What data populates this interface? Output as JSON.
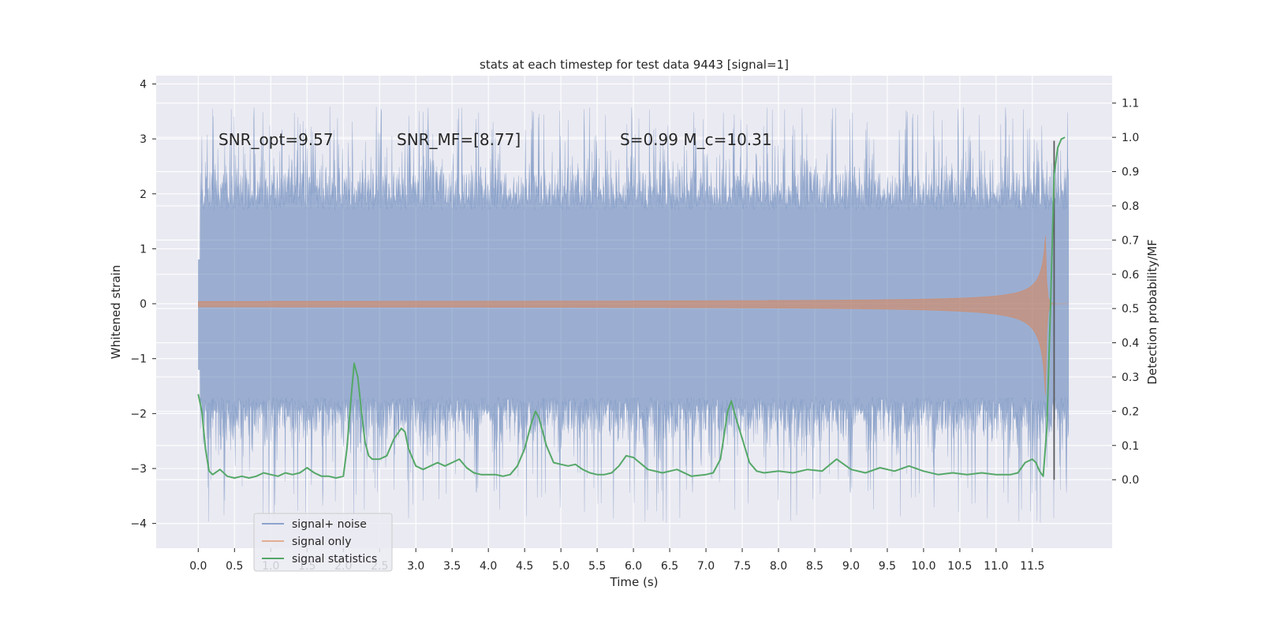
{
  "chart_data": {
    "type": "line",
    "title": "stats at each timestep for test data 9443 [signal=1]",
    "xlabel": "Time (s)",
    "ylabel_left": "Whitened strain",
    "ylabel_right": "Detection probability/MF",
    "xlim": [
      -0.58,
      12.6
    ],
    "ylim_left": [
      -4.45,
      4.15
    ],
    "ylim_right": [
      -0.2,
      1.18
    ],
    "x_ticks": [
      0.0,
      0.5,
      1.0,
      1.5,
      2.0,
      2.5,
      3.0,
      3.5,
      4.0,
      4.5,
      5.0,
      5.5,
      6.0,
      6.5,
      7.0,
      7.5,
      8.0,
      8.5,
      9.0,
      9.5,
      10.0,
      10.5,
      11.0,
      11.5
    ],
    "x_tick_labels": [
      "0.0",
      "0.5",
      "1.0",
      "1.5",
      "2.0",
      "2.5",
      "3.0",
      "3.5",
      "4.0",
      "4.5",
      "5.0",
      "5.5",
      "6.0",
      "6.5",
      "7.0",
      "7.5",
      "8.0",
      "8.5",
      "9.0",
      "9.5",
      "10.0",
      "10.5",
      "11.0",
      "11.5"
    ],
    "y_left_ticks": [
      -4,
      -3,
      -2,
      -1,
      0,
      1,
      2,
      3,
      4
    ],
    "y_left_tick_labels": [
      "−4",
      "−3",
      "−2",
      "−1",
      "0",
      "1",
      "2",
      "3",
      "4"
    ],
    "y_right_ticks": [
      0.0,
      0.1,
      0.2,
      0.3,
      0.4,
      0.5,
      0.6,
      0.7,
      0.8,
      0.9,
      1.0,
      1.1
    ],
    "y_right_tick_labels": [
      "0.0",
      "0.1",
      "0.2",
      "0.3",
      "0.4",
      "0.5",
      "0.6",
      "0.7",
      "0.8",
      "0.9",
      "1.0",
      "1.1"
    ],
    "grid": true,
    "legend_position": "lower-left",
    "colors": {
      "background": "#eaeaf2",
      "grid": "#ffffff",
      "noise": "#4c72b0",
      "signal": "#dd8452",
      "statistics": "#55a868",
      "marker_line": "#5a5a5a"
    },
    "annotations": [
      {
        "id": "snr-opt",
        "text": "SNR_opt=9.57"
      },
      {
        "id": "snr-mf",
        "text": "SNR_MF=[8.77]"
      },
      {
        "id": "s-mc",
        "text": "S=0.99   M_c=10.31"
      }
    ],
    "series": [
      {
        "name": "signal+ noise",
        "axis": "left",
        "t_range": [
          0.0,
          12.0
        ],
        "envelope_max": 3.6,
        "envelope_min": -4.1
      },
      {
        "name": "signal only",
        "axis": "left",
        "t_range": [
          0.0,
          12.0
        ],
        "merger_time": 11.68,
        "peak_amplitude": 1.3
      },
      {
        "name": "signal statistics",
        "axis": "right",
        "x": [
          0.0,
          0.05,
          0.1,
          0.15,
          0.2,
          0.3,
          0.4,
          0.5,
          0.6,
          0.7,
          0.8,
          0.9,
          1.0,
          1.1,
          1.2,
          1.3,
          1.4,
          1.5,
          1.6,
          1.7,
          1.8,
          1.9,
          2.0,
          2.05,
          2.1,
          2.15,
          2.2,
          2.25,
          2.3,
          2.35,
          2.4,
          2.5,
          2.6,
          2.7,
          2.8,
          2.85,
          2.9,
          3.0,
          3.1,
          3.2,
          3.3,
          3.4,
          3.5,
          3.6,
          3.7,
          3.8,
          3.9,
          4.0,
          4.1,
          4.2,
          4.3,
          4.4,
          4.5,
          4.6,
          4.65,
          4.7,
          4.8,
          4.9,
          5.0,
          5.1,
          5.2,
          5.3,
          5.4,
          5.5,
          5.6,
          5.7,
          5.8,
          5.9,
          6.0,
          6.2,
          6.4,
          6.6,
          6.8,
          7.0,
          7.1,
          7.2,
          7.3,
          7.35,
          7.4,
          7.5,
          7.6,
          7.7,
          7.8,
          8.0,
          8.2,
          8.4,
          8.6,
          8.8,
          9.0,
          9.2,
          9.4,
          9.6,
          9.8,
          10.0,
          10.2,
          10.4,
          10.6,
          10.8,
          11.0,
          11.2,
          11.3,
          11.4,
          11.5,
          11.55,
          11.6,
          11.65,
          11.7,
          11.75,
          11.8,
          11.85,
          11.9,
          11.95
        ],
        "y": [
          0.25,
          0.2,
          0.09,
          0.025,
          0.015,
          0.03,
          0.01,
          0.005,
          0.01,
          0.005,
          0.01,
          0.02,
          0.015,
          0.01,
          0.02,
          0.015,
          0.02,
          0.035,
          0.02,
          0.01,
          0.01,
          0.005,
          0.01,
          0.09,
          0.22,
          0.34,
          0.3,
          0.2,
          0.11,
          0.07,
          0.06,
          0.06,
          0.07,
          0.12,
          0.15,
          0.14,
          0.09,
          0.04,
          0.03,
          0.04,
          0.05,
          0.04,
          0.05,
          0.06,
          0.035,
          0.02,
          0.015,
          0.015,
          0.015,
          0.01,
          0.015,
          0.04,
          0.09,
          0.17,
          0.2,
          0.18,
          0.1,
          0.05,
          0.045,
          0.04,
          0.045,
          0.03,
          0.02,
          0.015,
          0.015,
          0.02,
          0.04,
          0.07,
          0.065,
          0.03,
          0.02,
          0.03,
          0.01,
          0.015,
          0.02,
          0.06,
          0.2,
          0.23,
          0.19,
          0.12,
          0.05,
          0.025,
          0.02,
          0.025,
          0.02,
          0.03,
          0.025,
          0.06,
          0.03,
          0.02,
          0.035,
          0.025,
          0.04,
          0.025,
          0.015,
          0.02,
          0.015,
          0.02,
          0.015,
          0.015,
          0.02,
          0.05,
          0.06,
          0.05,
          0.025,
          0.01,
          0.15,
          0.5,
          0.89,
          0.97,
          0.995,
          1.0
        ]
      }
    ],
    "vertical_line": {
      "x": 11.8,
      "y_range": [
        0.0,
        0.99
      ]
    }
  }
}
